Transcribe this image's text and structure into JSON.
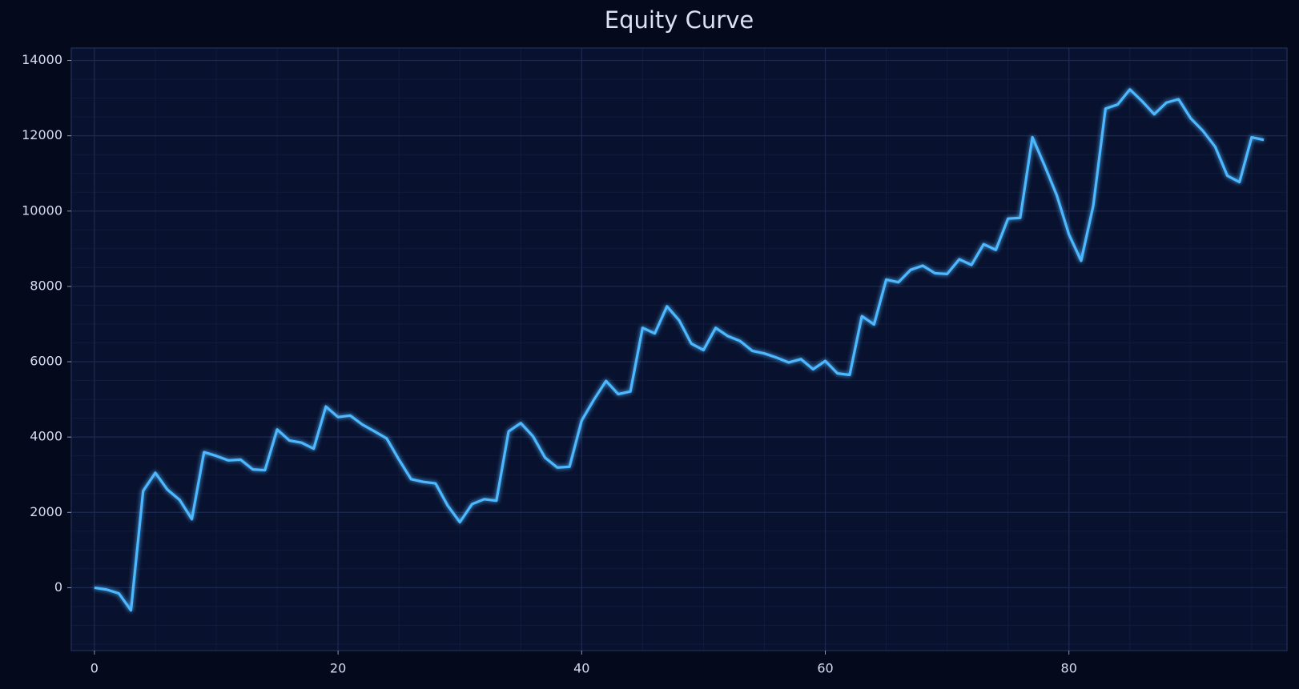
{
  "chart_data": {
    "type": "line",
    "title": "Equity Curve",
    "x": [
      0,
      1,
      2,
      3,
      4,
      5,
      6,
      7,
      8,
      9,
      10,
      11,
      12,
      13,
      14,
      15,
      16,
      17,
      18,
      19,
      20,
      21,
      22,
      23,
      24,
      25,
      26,
      27,
      28,
      29,
      30,
      31,
      32,
      33,
      34,
      35,
      36,
      37,
      38,
      39,
      40,
      41,
      42,
      43,
      44,
      45,
      46,
      47,
      48,
      49,
      50,
      51,
      52,
      53,
      54,
      55,
      56,
      57,
      58,
      59,
      60,
      61,
      62,
      63,
      64,
      65,
      66,
      67,
      68,
      69,
      70,
      71,
      72,
      73,
      74,
      75,
      76,
      77,
      78,
      79,
      80,
      81,
      82,
      83,
      84,
      85,
      86,
      87,
      88,
      89,
      90,
      91,
      92,
      93,
      94,
      95,
      96
    ],
    "series": [
      {
        "name": "Equity",
        "color": "#4db8ff",
        "values": [
          0,
          -50,
          -150,
          -600,
          2570,
          3050,
          2600,
          2330,
          1820,
          3600,
          3500,
          3380,
          3400,
          3140,
          3120,
          4200,
          3910,
          3850,
          3690,
          4810,
          4530,
          4570,
          4330,
          4150,
          3960,
          3400,
          2880,
          2810,
          2770,
          2180,
          1740,
          2220,
          2350,
          2310,
          4150,
          4370,
          4020,
          3450,
          3190,
          3210,
          4440,
          4990,
          5490,
          5140,
          5210,
          6900,
          6750,
          7470,
          7100,
          6480,
          6310,
          6900,
          6680,
          6550,
          6290,
          6220,
          6110,
          5980,
          6070,
          5800,
          6020,
          5690,
          5650,
          7210,
          6990,
          8180,
          8110,
          8440,
          8550,
          8350,
          8330,
          8720,
          8570,
          9120,
          8970,
          9800,
          9820,
          11960,
          11210,
          10420,
          9380,
          8680,
          10150,
          12720,
          12830,
          13230,
          12920,
          12570,
          12880,
          12970,
          12460,
          12130,
          11710,
          10940,
          10770,
          11960,
          11890
        ]
      }
    ],
    "xlim": [
      -1.9,
      97.9
    ],
    "ylim": [
      -1670,
      14330
    ],
    "xticks": [
      0,
      20,
      40,
      60,
      80
    ],
    "yticks": [
      0,
      2000,
      4000,
      6000,
      8000,
      10000,
      12000,
      14000
    ],
    "grid": true,
    "minor_grid": true
  }
}
